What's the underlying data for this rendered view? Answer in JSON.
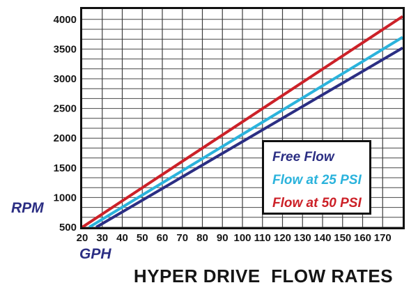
{
  "title": "HYPER DRIVE  FLOW RATES",
  "axis_labels": {
    "x": "GPH",
    "y": "RPM"
  },
  "legend": {
    "items": [
      {
        "label": "Free Flow",
        "color": "#2b2e83"
      },
      {
        "label": "Flow at 25 PSI",
        "color": "#2bb3dc"
      },
      {
        "label": "Flow at 50 PSI",
        "color": "#cc2128"
      }
    ]
  },
  "chart_data": {
    "type": "line",
    "title": "HYPER DRIVE FLOW RATES",
    "xlabel": "GPH",
    "ylabel": "RPM",
    "xlim": [
      20,
      180
    ],
    "ylim": [
      500,
      4160
    ],
    "x_ticks": [
      20,
      30,
      40,
      50,
      60,
      70,
      80,
      90,
      100,
      110,
      120,
      130,
      140,
      150,
      160,
      170
    ],
    "y_ticks": [
      500,
      1000,
      1500,
      2000,
      2500,
      3000,
      3500,
      4000
    ],
    "grid": {
      "vertical_step_gph": 10,
      "horizontal_step_rpm": 166.67,
      "on": true
    },
    "legend_position": "inside-right-middle",
    "series": [
      {
        "name": "Free Flow",
        "color": "#2b2e83",
        "points": [
          [
            27,
            500
          ],
          [
            100,
            1941
          ],
          [
            180,
            3520
          ]
        ]
      },
      {
        "name": "Flow at 25 PSI",
        "color": "#2bb3dc",
        "points": [
          [
            23.5,
            500
          ],
          [
            100,
            2064
          ],
          [
            180,
            3700
          ]
        ]
      },
      {
        "name": "Flow at 50 PSI",
        "color": "#cc2128",
        "points": [
          [
            20,
            500
          ],
          [
            100,
            2275
          ],
          [
            180,
            4050
          ]
        ]
      }
    ]
  }
}
